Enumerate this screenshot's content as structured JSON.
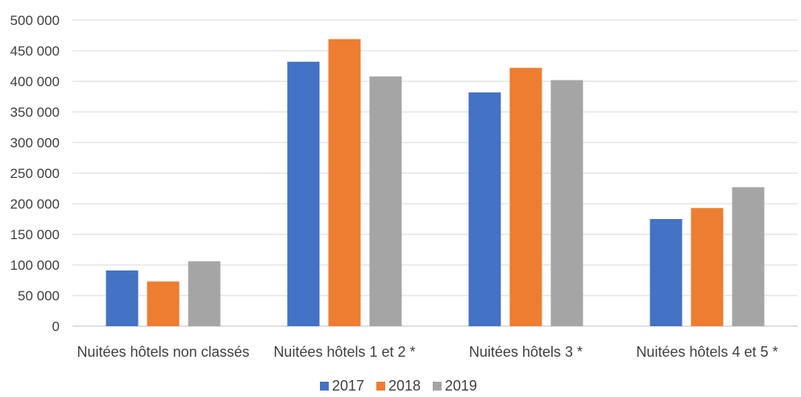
{
  "chart_data": {
    "type": "bar",
    "title": "",
    "xlabel": "",
    "ylabel": "",
    "categories": [
      "Nuitées hôtels non classés",
      "Nuitées hôtels 1 et 2 *",
      "Nuitées hôtels 3 *",
      "Nuitées hôtels 4 et 5 *"
    ],
    "series": [
      {
        "name": "2017",
        "color": "#4472c4",
        "values": [
          91000,
          432000,
          382000,
          175000
        ]
      },
      {
        "name": "2018",
        "color": "#ed7d31",
        "values": [
          73000,
          469000,
          422000,
          193000
        ]
      },
      {
        "name": "2019",
        "color": "#a5a5a5",
        "values": [
          106000,
          408000,
          402000,
          227000
        ]
      }
    ],
    "ylim": [
      0,
      500000
    ],
    "yticks": [
      0,
      50000,
      100000,
      150000,
      200000,
      250000,
      300000,
      350000,
      400000,
      450000,
      500000
    ],
    "ytick_labels": [
      "0",
      "50 000",
      "100 000",
      "150 000",
      "200 000",
      "250 000",
      "300 000",
      "350 000",
      "400 000",
      "450 000",
      "500 000"
    ],
    "grid": true,
    "legend_position": "bottom-center"
  }
}
